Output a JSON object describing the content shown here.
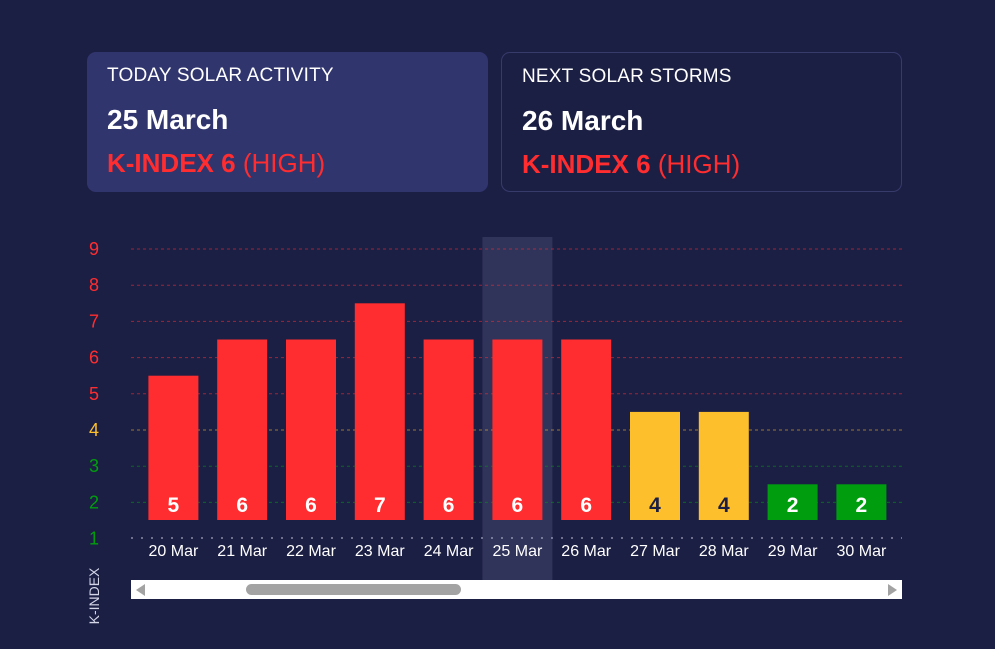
{
  "today": {
    "title": "TODAY SOLAR ACTIVITY",
    "date": "25 March",
    "kindex_label": "K-INDEX 6",
    "level": "(HIGH)"
  },
  "next": {
    "title": "NEXT SOLAR STORMS",
    "date": "26 March",
    "kindex_label": "K-INDEX 6",
    "level": "(HIGH)"
  },
  "colors": {
    "background": "#1c1f44",
    "high": "#ff2d2f",
    "medium": "#fdbf2c",
    "low": "#009e0f",
    "highlight": "#30335a"
  },
  "chart_data": {
    "type": "bar",
    "categories": [
      "20 Mar",
      "21 Mar",
      "22 Mar",
      "23 Mar",
      "24 Mar",
      "25 Mar",
      "26 Mar",
      "27 Mar",
      "28 Mar",
      "29 Mar",
      "30 Mar"
    ],
    "values": [
      5,
      6,
      6,
      7,
      6,
      6,
      6,
      4,
      4,
      2,
      2
    ],
    "data_labels": [
      "5",
      "6",
      "6",
      "7",
      "6",
      "6",
      "6",
      "4",
      "4",
      "2",
      "2"
    ],
    "yticks": [
      "1",
      "2",
      "3",
      "4",
      "5",
      "6",
      "7",
      "8",
      "9"
    ],
    "ylabel": "K-INDEX",
    "ylim": [
      1,
      9
    ],
    "highlighted_category": "25 Mar",
    "grid": true
  },
  "scrollbar": {
    "position": 0.15
  }
}
